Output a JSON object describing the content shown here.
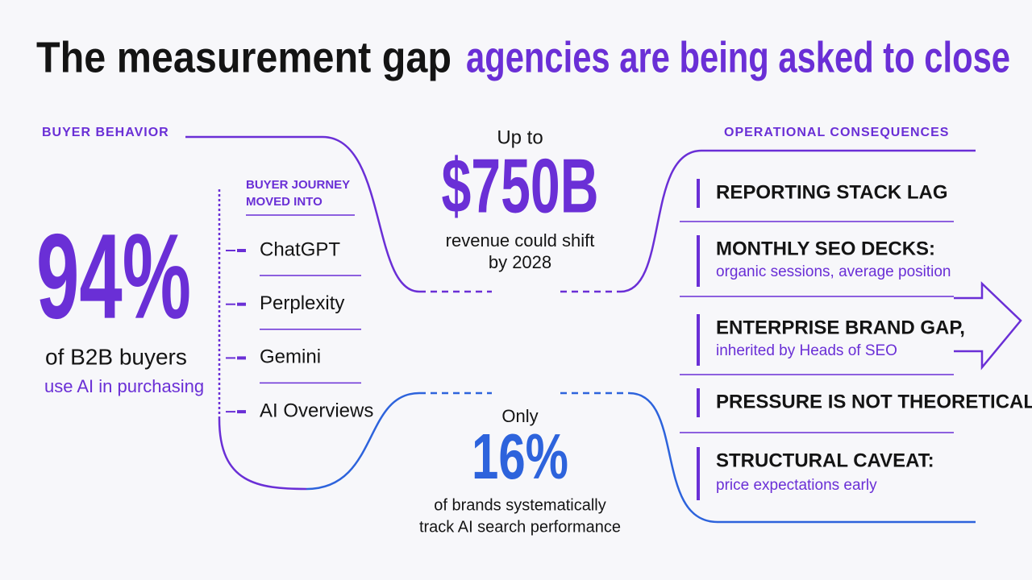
{
  "title": {
    "dark": "The measurement gap",
    "accent": "agencies are being asked to close"
  },
  "left": {
    "label": "BUYER BEHAVIOR",
    "stat": "94%",
    "caption": "of B2B buyers",
    "sub": "use AI in purchasing"
  },
  "journey": {
    "label_lines": [
      "BUYER JOURNEY",
      "MOVED INTO"
    ],
    "items": [
      "ChatGPT",
      "Perplexity",
      "Gemini",
      "AI Overviews"
    ]
  },
  "center_top": {
    "pre": "Up to",
    "stat": "$750B",
    "caption_lines": [
      "revenue could shift",
      "by 2028"
    ]
  },
  "center_bottom": {
    "pre": "Only",
    "stat": "16%",
    "caption_lines": [
      "of brands systematically",
      "track AI search performance"
    ]
  },
  "right": {
    "label": "OPERATIONAL CONSEQUENCES",
    "items": [
      {
        "title": "REPORTING STACK LAG"
      },
      {
        "title": "MONTHLY SEO DECKS:",
        "sub": "organic sessions, average position"
      },
      {
        "title": "ENTERPRISE BRAND GAP,",
        "sub": "inherited by Heads of SEO"
      },
      {
        "title": "PRESSURE IS NOT THEORETICAL"
      },
      {
        "title": "STRUCTURAL CAVEAT:",
        "sub": "price expectations early"
      }
    ]
  }
}
